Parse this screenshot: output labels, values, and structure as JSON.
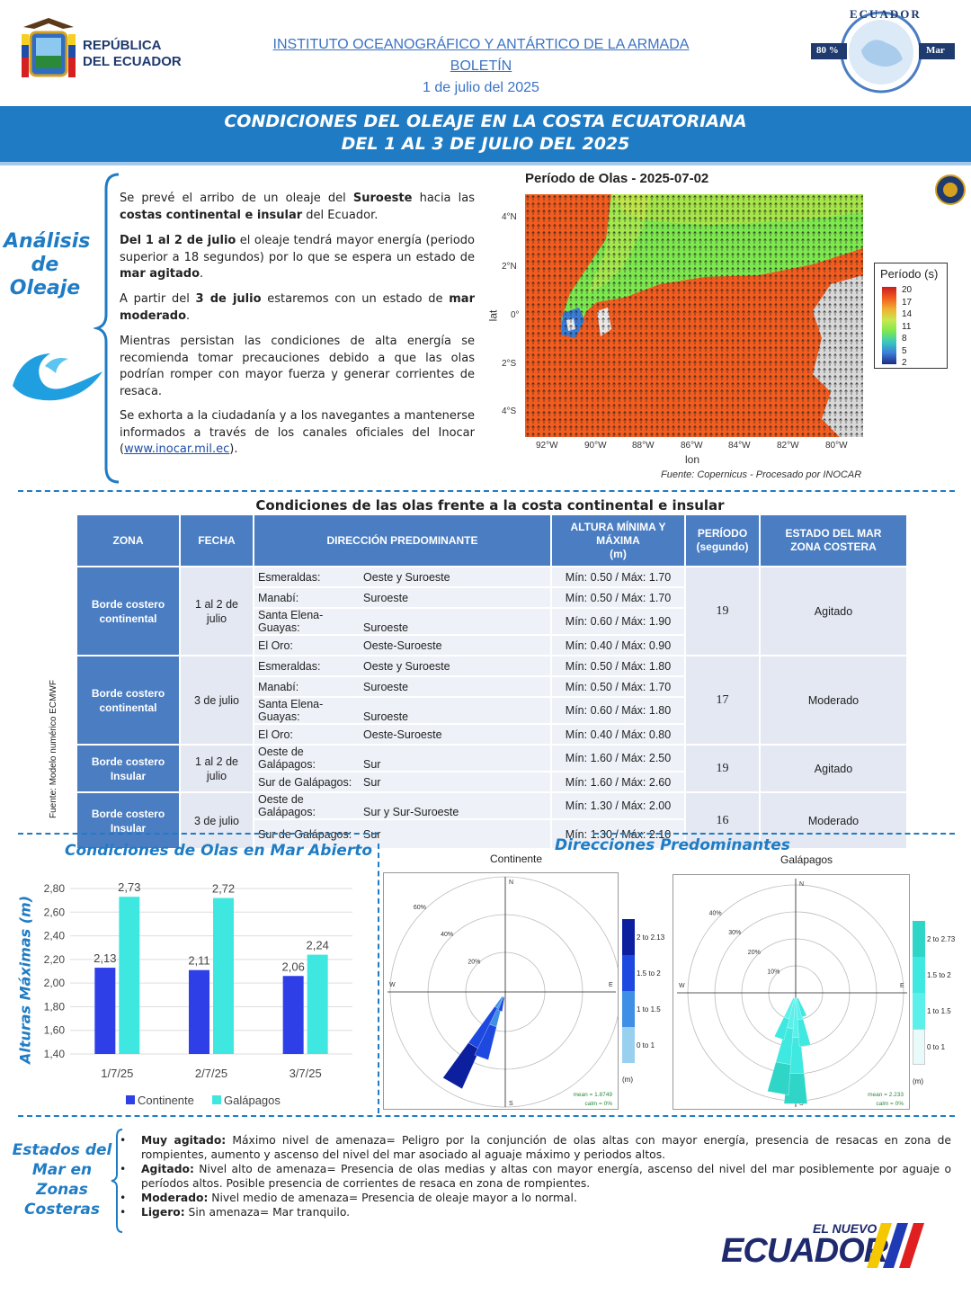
{
  "header": {
    "republica_line1": "REPÚBLICA",
    "republica_line2": "DEL ECUADOR",
    "institute": "INSTITUTO OCEANOGRÁFICO Y ANTÁRTICO DE LA ARMADA",
    "bulletin": "BOLETÍN",
    "date": "1 de julio del 2025",
    "logo_right_top": "ECUADOR",
    "logo_right_pct": "80 %",
    "logo_right_mar": "Mar"
  },
  "banner": {
    "line1": "CONDICIONES DEL OLEAJE EN LA COSTA ECUATORIANA",
    "line2": "DEL 1 AL 3 DE JULIO DEL 2025"
  },
  "analysis": {
    "title_line1": "Análisis",
    "title_line2": "de",
    "title_line3": "Oleaje",
    "p1_a": "Se prevé el arribo de un oleaje del ",
    "p1_b": "Suroeste",
    "p1_c": " hacia las ",
    "p1_d": "costas continental e insular",
    "p1_e": " del Ecuador.",
    "p2_a": "Del 1 al 2 de julio",
    "p2_b": " el oleaje tendrá mayor energía (periodo superior a 18 segundos) por lo que se espera un estado de ",
    "p2_c": "mar agitado",
    "p2_d": ".",
    "p3_a": "A partir del ",
    "p3_b": "3 de julio",
    "p3_c": " estaremos con un estado de ",
    "p3_d": "mar moderado",
    "p3_e": ".",
    "p4": "Mientras persistan las condiciones de alta energía se recomienda tomar precauciones debido a que las olas podrían romper con mayor fuerza y generar corrientes de resaca.",
    "p5_a": "Se exhorta a la ciudadanía y a los navegantes a mantenerse informados a través de los canales oficiales del Inocar (",
    "p5_link": "www.inocar.mil.ec",
    "p5_b": ")."
  },
  "map": {
    "title": "Período de Olas - 2025-07-02",
    "lat_label": "lat",
    "lon_label": "lon",
    "lat_ticks": [
      "4°N",
      "2°N",
      "0°",
      "2°S",
      "4°S"
    ],
    "lon_ticks": [
      "92°W",
      "90°W",
      "88°W",
      "86°W",
      "84°W",
      "82°W",
      "80°W"
    ],
    "colorbar_title": "Período (s)",
    "colorbar_ticks": [
      "20",
      "17",
      "14",
      "11",
      "8",
      "5",
      "2"
    ],
    "source": "Fuente: Copernicus - Procesado por INOCAR"
  },
  "table": {
    "title": "Condiciones de las olas frente a la costa continental e insular",
    "headers": {
      "zona": "ZONA",
      "fecha": "FECHA",
      "direccion": "DIRECCIÓN PREDOMINANTE",
      "altura_1": "ALTURA MÍNIMA Y",
      "altura_2": "MÁXIMA",
      "altura_3": "(m)",
      "periodo_1": "PERÍODO",
      "periodo_2": "(segundo)",
      "estado_1": "ESTADO DEL MAR",
      "estado_2": "ZONA COSTERA"
    },
    "groups": [
      {
        "zona_1": "Borde costero",
        "zona_2": "continental",
        "fecha_1": "1 al 2 de",
        "fecha_2": "julio",
        "periodo": "19",
        "estado": "Agitado",
        "rows": [
          {
            "loc": "Esmeraldas:",
            "dir": "Oeste y Suroeste",
            "alt": "Mín: 0.50 / Máx: 1.70"
          },
          {
            "loc": "Manabí:",
            "dir": "Suroeste",
            "alt": "Mín: 0.50 / Máx: 1.70"
          },
          {
            "loc": "Santa Elena-Guayas:",
            "dir": "Suroeste",
            "alt": "Mín: 0.60 / Máx: 1.90"
          },
          {
            "loc": "El Oro:",
            "dir": "Oeste-Suroeste",
            "alt": "Mín: 0.40 / Máx: 0.90"
          }
        ]
      },
      {
        "zona_1": "Borde costero",
        "zona_2": "continental",
        "fecha_1": "3 de julio",
        "fecha_2": "",
        "periodo": "17",
        "estado": "Moderado",
        "rows": [
          {
            "loc": "Esmeraldas:",
            "dir": "Oeste y Suroeste",
            "alt": "Mín: 0.50 / Máx: 1.80"
          },
          {
            "loc": "Manabí:",
            "dir": "Suroeste",
            "alt": "Mín: 0.50 / Máx: 1.70"
          },
          {
            "loc": "Santa Elena-Guayas:",
            "dir": "Suroeste",
            "alt": "Mín: 0.60 / Máx: 1.80"
          },
          {
            "loc": "El Oro:",
            "dir": "Oeste-Suroeste",
            "alt": "Mín: 0.40 / Máx: 0.80"
          }
        ]
      },
      {
        "zona_1": "Borde costero",
        "zona_2": "Insular",
        "fecha_1": "1 al 2 de",
        "fecha_2": "julio",
        "periodo": "19",
        "estado": "Agitado",
        "rows": [
          {
            "loc": "Oeste de Galápagos:",
            "dir": "Sur",
            "alt": "Mín: 1.60 / Máx: 2.50"
          },
          {
            "loc": "Sur de Galápagos:",
            "dir": "Sur",
            "alt": "Mín: 1.60 / Máx: 2.60"
          }
        ]
      },
      {
        "zona_1": "Borde costero",
        "zona_2": "Insular",
        "fecha_1": "3 de julio",
        "fecha_2": "",
        "periodo": "16",
        "estado": "Moderado",
        "rows": [
          {
            "loc": "Oeste de Galápagos:",
            "dir": "Sur y Sur-Suroeste",
            "alt": "Mín: 1.30 / Máx: 2.00"
          },
          {
            "loc": "Sur de Galápagos:",
            "dir": "Sur",
            "alt": "Mín: 1.30 / Máx: 2.10"
          }
        ]
      }
    ],
    "source": "Fuente: Modelo numérico ECMWF"
  },
  "open_sea": {
    "title": "Condiciones de Olas en Mar Abierto",
    "ylabel": "Alturas Máximas (m)"
  },
  "chart_data": {
    "type": "bar",
    "categories": [
      "1/7/25",
      "2/7/25",
      "3/7/25"
    ],
    "series": [
      {
        "name": "Continente",
        "values": [
          2.13,
          2.11,
          2.06
        ],
        "labels": [
          "2,13",
          "2,11",
          "2,06"
        ]
      },
      {
        "name": "Galápagos",
        "values": [
          2.73,
          2.72,
          2.24
        ],
        "labels": [
          "2,73",
          "2,72",
          "2,24"
        ]
      }
    ],
    "ylim": [
      1.4,
      2.8
    ],
    "yticks": [
      "1,40",
      "1,60",
      "1,80",
      "2,00",
      "2,20",
      "2,40",
      "2,60",
      "2,80"
    ],
    "colors": [
      "#2f3fe8",
      "#3ee8e0"
    ],
    "legend": "bottom"
  },
  "directions": {
    "title": "Direcciones Predominantes",
    "continente": {
      "title": "Continente",
      "rings": [
        "60%",
        "40%",
        "20%"
      ],
      "legend": [
        "2 to 2.13",
        "1.5 to 2",
        "1 to 1.5",
        "0 to 1"
      ],
      "colors": [
        "#0c1f9e",
        "#1d49e0",
        "#3f8fe6",
        "#9ad0ef"
      ],
      "unit": "(m)",
      "mean": "mean = 1.8749",
      "calm": "calm = 0%"
    },
    "galapagos": {
      "title": "Galápagos",
      "rings": [
        "40%",
        "30%",
        "20%",
        "10%"
      ],
      "legend": [
        "2 to 2.73",
        "1.5 to 2",
        "1 to 1.5",
        "0 to 1"
      ],
      "colors": [
        "#2fd6c8",
        "#3fe8e0",
        "#5cf0ea",
        "#e8fbfa"
      ],
      "unit": "(m)",
      "mean": "mean = 2.233",
      "calm": "calm = 0%"
    },
    "compass": {
      "n": "N",
      "s": "S",
      "e": "E",
      "w": "W"
    }
  },
  "states": {
    "title_line1": "Estados del",
    "title_line2": "Mar en",
    "title_line3": "Zonas",
    "title_line4": "Costeras",
    "items": [
      {
        "term": "Muy agitado:",
        "text": " Máximo nivel de amenaza= Peligro por la conjunción de olas altas con mayor energía, presencia de resacas en zona de rompientes, aumento y ascenso del nivel del mar asociado al aguaje máximo y periodos altos."
      },
      {
        "term": "Agitado:",
        "text": " Nivel alto de amenaza= Presencia de olas medias y altas con mayor energía, ascenso del nivel del mar posiblemente por aguaje o períodos altos. Posible presencia de corrientes de resaca en zona de rompientes."
      },
      {
        "term": "Moderado:",
        "text": " Nivel medio de amenaza= Presencia de oleaje mayor a lo normal."
      },
      {
        "term": "Ligero:",
        "text": " Sin amenaza= Mar tranquilo."
      }
    ]
  },
  "footer": {
    "el_nuevo": "EL NUEVO",
    "ecuador": "ECUADOR"
  }
}
